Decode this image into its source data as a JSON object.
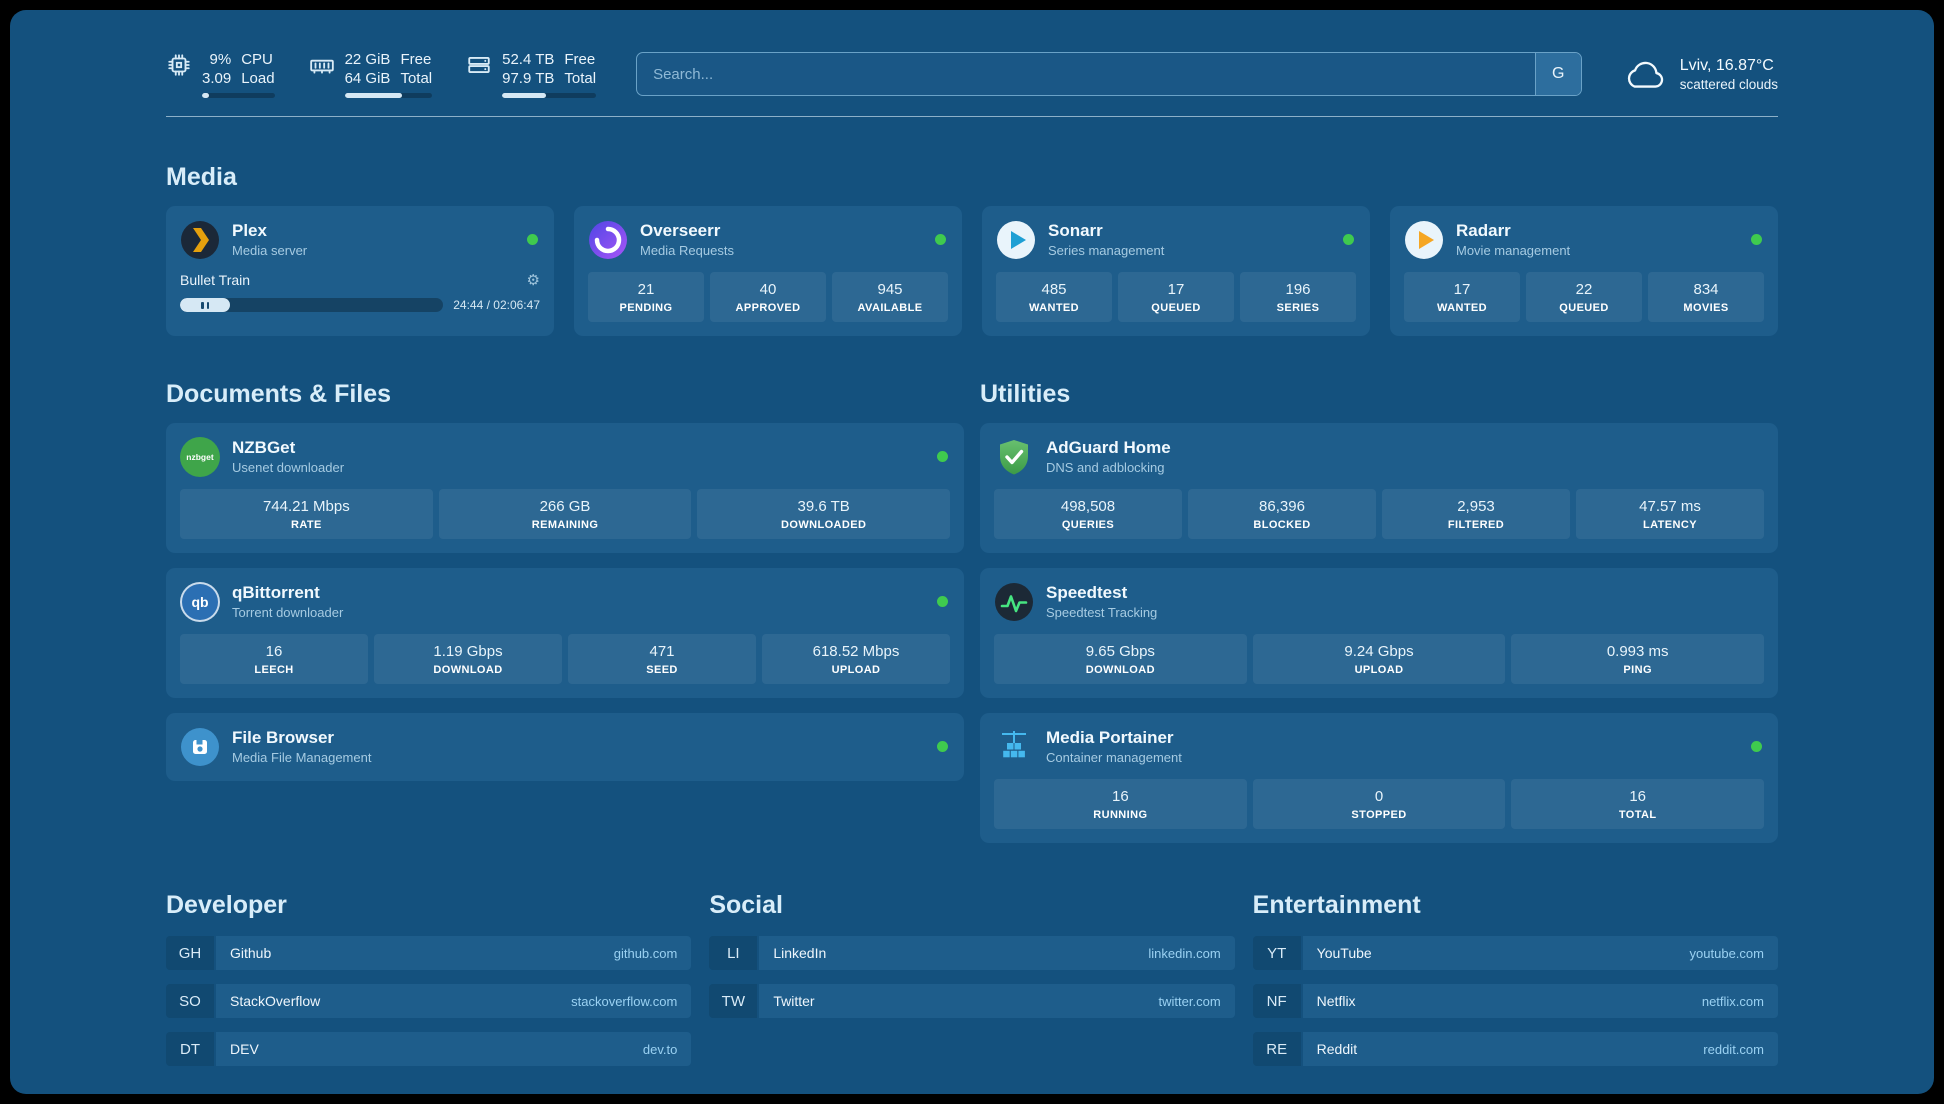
{
  "header": {
    "cpu": {
      "value_top": "9%",
      "value_bottom": "3.09",
      "label_top": "CPU",
      "label_bottom": "Load",
      "bar_percent": 9
    },
    "memory": {
      "value_top": "22 GiB",
      "value_bottom": "64 GiB",
      "label_top": "Free",
      "label_bottom": "Total",
      "bar_percent": 66
    },
    "disk": {
      "value_top": "52.4 TB",
      "value_bottom": "97.9 TB",
      "label_top": "Free",
      "label_bottom": "Total",
      "bar_percent": 47
    },
    "search": {
      "placeholder": "Search...",
      "engine": "G"
    },
    "weather": {
      "location": "Lviv, 16.87°C",
      "condition": "scattered clouds"
    }
  },
  "media": {
    "title": "Media",
    "plex": {
      "title": "Plex",
      "subtitle": "Media server",
      "now_playing": "Bullet Train",
      "time": "24:44 / 02:06:47",
      "progress_percent": 19
    },
    "overseerr": {
      "title": "Overseerr",
      "subtitle": "Media Requests",
      "stats": [
        {
          "value": "21",
          "label": "PENDING"
        },
        {
          "value": "40",
          "label": "APPROVED"
        },
        {
          "value": "945",
          "label": "AVAILABLE"
        }
      ]
    },
    "sonarr": {
      "title": "Sonarr",
      "subtitle": "Series management",
      "stats": [
        {
          "value": "485",
          "label": "WANTED"
        },
        {
          "value": "17",
          "label": "QUEUED"
        },
        {
          "value": "196",
          "label": "SERIES"
        }
      ]
    },
    "radarr": {
      "title": "Radarr",
      "subtitle": "Movie management",
      "stats": [
        {
          "value": "17",
          "label": "WANTED"
        },
        {
          "value": "22",
          "label": "QUEUED"
        },
        {
          "value": "834",
          "label": "MOVIES"
        }
      ]
    }
  },
  "documents": {
    "title": "Documents & Files",
    "nzbget": {
      "title": "NZBGet",
      "subtitle": "Usenet downloader",
      "icon_label": "nzbget",
      "stats": [
        {
          "value": "744.21 Mbps",
          "label": "RATE"
        },
        {
          "value": "266 GB",
          "label": "REMAINING"
        },
        {
          "value": "39.6 TB",
          "label": "DOWNLOADED"
        }
      ]
    },
    "qbittorrent": {
      "title": "qBittorrent",
      "subtitle": "Torrent downloader",
      "icon_label": "qb",
      "stats": [
        {
          "value": "16",
          "label": "LEECH"
        },
        {
          "value": "1.19 Gbps",
          "label": "DOWNLOAD"
        },
        {
          "value": "471",
          "label": "SEED"
        },
        {
          "value": "618.52 Mbps",
          "label": "UPLOAD"
        }
      ]
    },
    "filebrowser": {
      "title": "File Browser",
      "subtitle": "Media File Management"
    }
  },
  "utilities": {
    "title": "Utilities",
    "adguard": {
      "title": "AdGuard Home",
      "subtitle": "DNS and adblocking",
      "stats": [
        {
          "value": "498,508",
          "label": "QUERIES"
        },
        {
          "value": "86,396",
          "label": "BLOCKED"
        },
        {
          "value": "2,953",
          "label": "FILTERED"
        },
        {
          "value": "47.57 ms",
          "label": "LATENCY"
        }
      ]
    },
    "speedtest": {
      "title": "Speedtest",
      "subtitle": "Speedtest Tracking",
      "stats": [
        {
          "value": "9.65 Gbps",
          "label": "DOWNLOAD"
        },
        {
          "value": "9.24 Gbps",
          "label": "UPLOAD"
        },
        {
          "value": "0.993 ms",
          "label": "PING"
        }
      ]
    },
    "portainer": {
      "title": "Media Portainer",
      "subtitle": "Container management",
      "stats": [
        {
          "value": "16",
          "label": "RUNNING"
        },
        {
          "value": "0",
          "label": "STOPPED"
        },
        {
          "value": "16",
          "label": "TOTAL"
        }
      ]
    }
  },
  "bookmarks": [
    {
      "title": "Developer",
      "links": [
        {
          "abbr": "GH",
          "name": "Github",
          "domain": "github.com"
        },
        {
          "abbr": "SO",
          "name": "StackOverflow",
          "domain": "stackoverflow.com"
        },
        {
          "abbr": "DT",
          "name": "DEV",
          "domain": "dev.to"
        }
      ]
    },
    {
      "title": "Social",
      "links": [
        {
          "abbr": "LI",
          "name": "LinkedIn",
          "domain": "linkedin.com"
        },
        {
          "abbr": "TW",
          "name": "Twitter",
          "domain": "twitter.com"
        }
      ]
    },
    {
      "title": "Entertainment",
      "links": [
        {
          "abbr": "YT",
          "name": "YouTube",
          "domain": "youtube.com"
        },
        {
          "abbr": "NF",
          "name": "Netflix",
          "domain": "netflix.com"
        },
        {
          "abbr": "RE",
          "name": "Reddit",
          "domain": "reddit.com"
        }
      ]
    }
  ],
  "colors": {
    "accent_green": "#3FCA4E",
    "background": "#14517E",
    "card": "#1E5D8B"
  }
}
